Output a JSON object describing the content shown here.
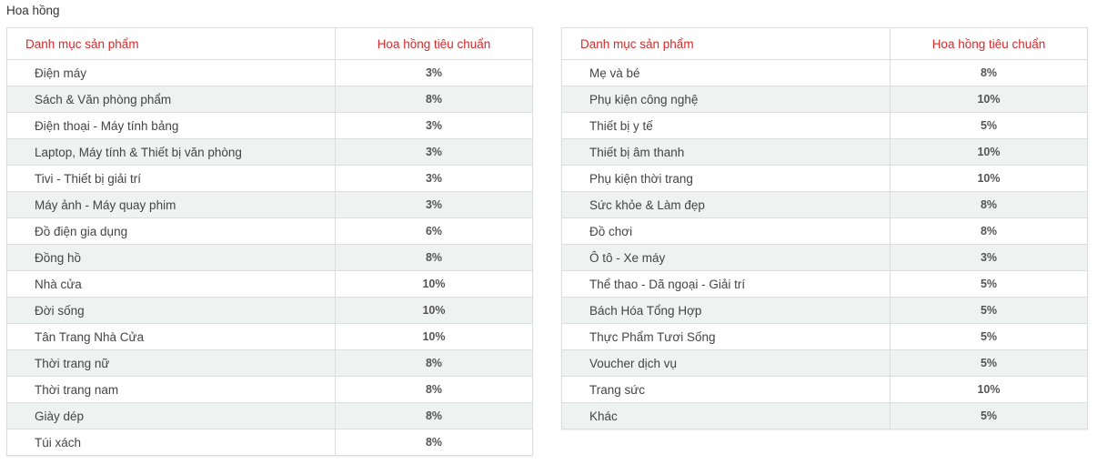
{
  "title": "Hoa hồng",
  "tables": [
    {
      "header": [
        "Danh mục sản phẩm",
        "Hoa hồng tiêu chuẩn"
      ],
      "rows": [
        [
          "Điện máy",
          "3%"
        ],
        [
          "Sách & Văn phòng phẩm",
          "8%"
        ],
        [
          "Điện thoại - Máy tính bảng",
          "3%"
        ],
        [
          "Laptop, Máy tính & Thiết bị văn phòng",
          "3%"
        ],
        [
          "Tivi - Thiết bị giải trí",
          "3%"
        ],
        [
          "Máy ảnh - Máy quay phim",
          "3%"
        ],
        [
          "Đồ điện gia dụng",
          "6%"
        ],
        [
          "Đồng hồ",
          "8%"
        ],
        [
          "Nhà cửa",
          "10%"
        ],
        [
          "Đời sống",
          "10%"
        ],
        [
          "Tân Trang Nhà Cửa",
          "10%"
        ],
        [
          "Thời trang nữ",
          "8%"
        ],
        [
          "Thời trang nam",
          "8%"
        ],
        [
          "Giày dép",
          "8%"
        ],
        [
          "Túi xách",
          "8%"
        ]
      ]
    },
    {
      "header": [
        "Danh mục sản phẩm",
        "Hoa hồng tiêu chuẩn"
      ],
      "rows": [
        [
          "Mẹ và bé",
          "8%"
        ],
        [
          "Phụ kiện công nghệ",
          "10%"
        ],
        [
          "Thiết bị y tế",
          "5%"
        ],
        [
          "Thiết bị âm thanh",
          "10%"
        ],
        [
          "Phụ kiện thời trang",
          "10%"
        ],
        [
          "Sức khỏe & Làm đẹp",
          "8%"
        ],
        [
          "Đồ chơi",
          "8%"
        ],
        [
          "Ô tô - Xe máy",
          "3%"
        ],
        [
          "Thể thao - Dã ngoại - Giải trí",
          "5%"
        ],
        [
          "Bách Hóa Tổng Hợp",
          "5%"
        ],
        [
          "Thực Phẩm Tươi Sống",
          "5%"
        ],
        [
          "Voucher dịch vụ",
          "5%"
        ],
        [
          "Trang sức",
          "10%"
        ],
        [
          "Khác",
          "5%"
        ]
      ]
    }
  ]
}
